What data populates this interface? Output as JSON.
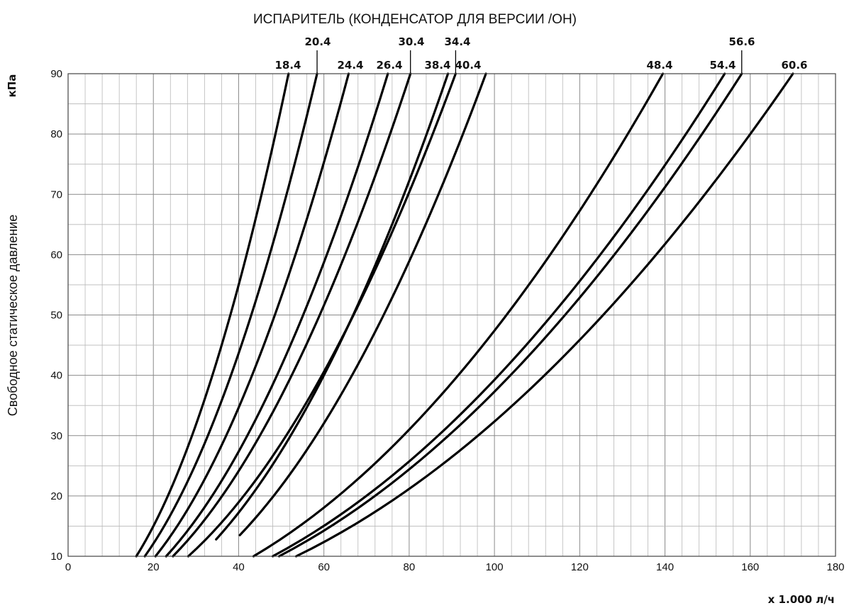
{
  "chart_data": {
    "type": "line",
    "title": "ИСПАРИТЕЛЬ (КОНДЕНСАТОР ДЛЯ ВЕРСИИ /OH)",
    "xlabel": "x 1.000 л/ч",
    "ylabel": "Свободное статическое давление",
    "yunit": "кПа",
    "xlim": [
      0,
      180
    ],
    "ylim": [
      10,
      90
    ],
    "xticks": [
      0,
      20,
      40,
      60,
      80,
      100,
      120,
      140,
      160,
      180
    ],
    "yticks": [
      10,
      20,
      30,
      40,
      50,
      60,
      70,
      80,
      90
    ],
    "xtick_labels": [
      "0",
      "20",
      "40",
      "60",
      "80",
      "100",
      "120",
      "140",
      "160",
      "180"
    ],
    "ytick_labels": [
      "10",
      "20",
      "30",
      "40",
      "50",
      "60",
      "70",
      "80",
      "90"
    ],
    "grid": true,
    "series": [
      {
        "name": "18.4",
        "x": [
          16.0,
          51.7
        ]
      },
      {
        "name": "20.4",
        "x": [
          18.0,
          58.4
        ]
      },
      {
        "name": "24.4",
        "x": [
          20.5,
          65.8
        ]
      },
      {
        "name": "26.4",
        "x": [
          23.0,
          75.0
        ]
      },
      {
        "name": "30.4",
        "x": [
          24.6,
          80.3
        ]
      },
      {
        "name": "38.4",
        "x": [
          30.9,
          89.1
        ],
        "y_start": 12.8
      },
      {
        "name": "34.4",
        "x": [
          28.2,
          90.9
        ]
      },
      {
        "name": "40.4",
        "x": [
          35.2,
          98.0
        ],
        "y_start": 13.5
      },
      {
        "name": "48.4",
        "x": [
          43.5,
          139.5
        ]
      },
      {
        "name": "54.4",
        "x": [
          48.0,
          154.0
        ]
      },
      {
        "name": "56.6",
        "x": [
          49.5,
          158.0
        ]
      },
      {
        "name": "60.6",
        "x": [
          53.5,
          170.0
        ]
      }
    ]
  }
}
